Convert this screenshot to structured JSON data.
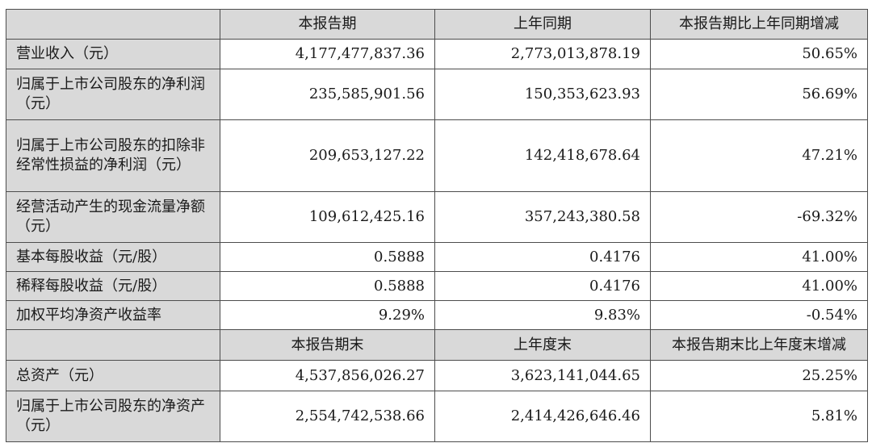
{
  "header1": [
    "",
    "本报告期",
    "上年同期",
    "本报告期比上年同期增减"
  ],
  "rows1": [
    {
      "label": "营业收入（元）",
      "cur": "4,177,477,837.36",
      "prev": "2,773,013,878.19",
      "chg": "50.65%"
    },
    {
      "label": "归属于上市公司股东的净利润（元）",
      "cur": "235,585,901.56",
      "prev": "150,353,623.93",
      "chg": "56.69%"
    },
    {
      "label": "归属于上市公司股东的扣除非经常性损益的净利润（元）",
      "cur": "209,653,127.22",
      "prev": "142,418,678.64",
      "chg": "47.21%"
    },
    {
      "label": "经营活动产生的现金流量净额（元）",
      "cur": "109,612,425.16",
      "prev": "357,243,380.58",
      "chg": "-69.32%"
    },
    {
      "label": "基本每股收益（元/股）",
      "cur": "0.5888",
      "prev": "0.4176",
      "chg": "41.00%"
    },
    {
      "label": "稀释每股收益（元/股）",
      "cur": "0.5888",
      "prev": "0.4176",
      "chg": "41.00%"
    },
    {
      "label": "加权平均净资产收益率",
      "cur": "9.29%",
      "prev": "9.83%",
      "chg": "-0.54%"
    }
  ],
  "header2": [
    "",
    "本报告期末",
    "上年度末",
    "本报告期末比上年度末增减"
  ],
  "rows2": [
    {
      "label": "总资产（元）",
      "cur": "4,537,856,026.27",
      "prev": "3,623,141,044.65",
      "chg": "25.25%"
    },
    {
      "label": "归属于上市公司股东的净资产（元）",
      "cur": "2,554,742,538.66",
      "prev": "2,414,426,646.46",
      "chg": "5.81%"
    }
  ]
}
